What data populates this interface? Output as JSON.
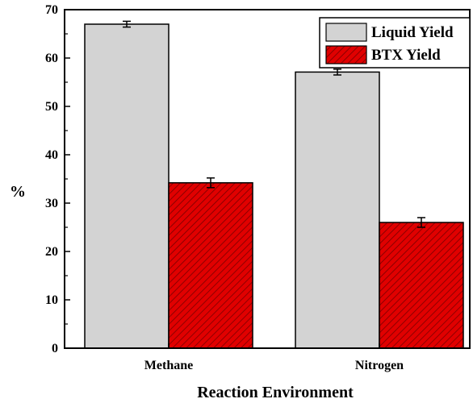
{
  "chart_data": {
    "type": "bar",
    "categories": [
      "Methane",
      "Nitrogen"
    ],
    "series": [
      {
        "name": "Liquid Yield",
        "values": [
          67.0,
          57.1
        ],
        "errors": [
          0.6,
          0.6
        ],
        "color": "#d3d3d3",
        "pattern": "solid"
      },
      {
        "name": "BTX Yield",
        "values": [
          34.2,
          26.0
        ],
        "errors": [
          1.0,
          1.0
        ],
        "color": "#e00000",
        "pattern": "diagonal-hatch"
      }
    ],
    "title": "",
    "xlabel": "Reaction Environment",
    "ylabel": "%",
    "ylim": [
      0,
      70
    ],
    "yticks": [
      "0",
      "10",
      "20",
      "30",
      "40",
      "50",
      "60",
      "70"
    ],
    "minor_ticks": true,
    "grid": false,
    "legend_position": "top-right"
  }
}
